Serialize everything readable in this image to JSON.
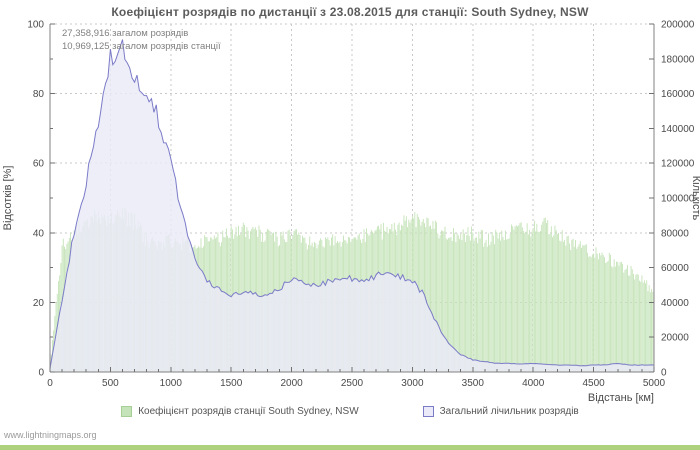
{
  "page": {
    "footer": "www.lightningmaps.org"
  },
  "chart_data": {
    "type": "area",
    "title": "Коефіцієнт розрядів по дистанції з 23.08.2015 для станції: South Sydney, NSW",
    "annotations": [
      "27,358,916 загалом розрядів",
      "10,969,125 загалом розрядів станції"
    ],
    "x_axis": {
      "label": "Відстань   [км]",
      "min": 0,
      "max": 5000,
      "ticks": [
        0,
        500,
        1000,
        1500,
        2000,
        2500,
        3000,
        3500,
        4000,
        4500,
        5000
      ]
    },
    "y_left": {
      "label": "Відсотків  [%]",
      "min": 0,
      "max": 100,
      "ticks": [
        0,
        20,
        40,
        60,
        80,
        100
      ]
    },
    "y_right": {
      "label": "Кількість",
      "min": 0,
      "max": 200000,
      "ticks": [
        0,
        20000,
        40000,
        60000,
        80000,
        100000,
        120000,
        140000,
        160000,
        180000,
        200000
      ]
    },
    "grid": "dashed",
    "legend_position": "bottom",
    "legend": [
      {
        "label": "Коефіцієнт розрядів станції South Sydney, NSW",
        "color": "#c5e3b8",
        "line_color": "#a6cf95",
        "type": "area"
      },
      {
        "label": "Загальний лічильник розрядів",
        "color": "#eaeaf8",
        "line_color": "#7b7bc8",
        "type": "area"
      }
    ],
    "series": [
      {
        "name": "Коефіцієнт розрядів станції South Sydney, NSW",
        "axis": "left",
        "unit": "%",
        "x": [
          0,
          100,
          200,
          300,
          400,
          500,
          600,
          700,
          800,
          900,
          1000,
          1100,
          1200,
          1300,
          1400,
          1500,
          1600,
          1700,
          1800,
          1900,
          2000,
          2100,
          2200,
          2300,
          2400,
          2500,
          2600,
          2700,
          2800,
          2900,
          3000,
          3100,
          3200,
          3300,
          3400,
          3500,
          3600,
          3700,
          3800,
          3900,
          4000,
          4100,
          4200,
          4300,
          4400,
          4500,
          4600,
          4700,
          4800,
          4900,
          5000
        ],
        "values": [
          2,
          36,
          40,
          43,
          45,
          44,
          45,
          43,
          38,
          37,
          38,
          37,
          36,
          38,
          38,
          40,
          41,
          40,
          39,
          38,
          40,
          38,
          36,
          37,
          38,
          38,
          39,
          40,
          41,
          42,
          44,
          43,
          41,
          40,
          39,
          40,
          38,
          39,
          40,
          42,
          41,
          43,
          40,
          37,
          36,
          34,
          33,
          31,
          29,
          27,
          22
        ]
      },
      {
        "name": "Загальний лічильник розрядів",
        "axis": "right",
        "unit": "розрядів",
        "x": [
          0,
          100,
          200,
          300,
          400,
          500,
          600,
          700,
          800,
          900,
          1000,
          1100,
          1200,
          1300,
          1400,
          1500,
          1600,
          1700,
          1800,
          1900,
          2000,
          2100,
          2200,
          2300,
          2400,
          2500,
          2600,
          2700,
          2800,
          2900,
          3000,
          3100,
          3200,
          3300,
          3400,
          3500,
          3600,
          3700,
          3800,
          3900,
          4000,
          4100,
          4200,
          4300,
          4400,
          4500,
          4600,
          4700,
          4800,
          4900,
          5000
        ],
        "values": [
          2000,
          42000,
          80000,
          110000,
          140000,
          180000,
          186000,
          166000,
          162000,
          145000,
          120000,
          88000,
          65000,
          52000,
          47000,
          44000,
          46000,
          45000,
          44000,
          48000,
          54000,
          52000,
          50000,
          52000,
          53000,
          54000,
          53000,
          55000,
          58000,
          55000,
          52000,
          44000,
          28000,
          16000,
          10000,
          7000,
          6000,
          5000,
          5000,
          4500,
          5000,
          4500,
          4000,
          4000,
          3500,
          4000,
          4000,
          5000,
          4000,
          4000,
          4000
        ]
      }
    ]
  }
}
